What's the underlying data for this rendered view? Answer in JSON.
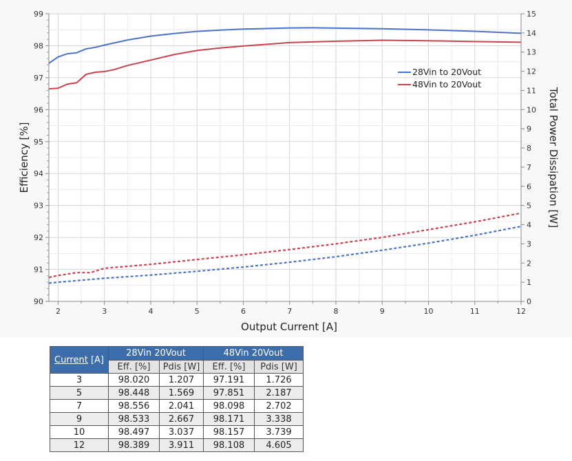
{
  "chart_data": {
    "type": "line",
    "xlabel": "Output Current [A]",
    "ylabel": "Efficiency [%]",
    "y2label": "Total Power Dissipation [W]",
    "xlim": [
      1.8,
      12
    ],
    "ylim": [
      90,
      99
    ],
    "y2lim": [
      0,
      15
    ],
    "xticks": [
      2,
      3,
      4,
      5,
      6,
      7,
      8,
      9,
      10,
      11,
      12
    ],
    "yticks": [
      90,
      91,
      92,
      93,
      94,
      95,
      96,
      97,
      98,
      99
    ],
    "y2ticks": [
      0,
      1,
      2,
      3,
      4,
      5,
      6,
      7,
      8,
      9,
      10,
      11,
      12,
      13,
      14,
      15
    ],
    "grid": true,
    "legend_placement": "right, upper",
    "legend": [
      "28Vin to 20Vout",
      "48Vin to 20Vout"
    ],
    "colors": {
      "28Vin": "#4a72c9",
      "48Vin": "#c8414f"
    },
    "series": [
      {
        "name": "28Vin to 20Vout",
        "axis": "left",
        "style": "solid",
        "color": "#4a72c9",
        "x": [
          1.8,
          2,
          2.2,
          2.4,
          2.6,
          2.8,
          3,
          3.5,
          4,
          4.5,
          5,
          5.5,
          6,
          7,
          7.5,
          8,
          9,
          10,
          11,
          12
        ],
        "y": [
          97.45,
          97.65,
          97.75,
          97.78,
          97.9,
          97.95,
          98.02,
          98.18,
          98.3,
          98.38,
          98.448,
          98.49,
          98.52,
          98.556,
          98.56,
          98.55,
          98.533,
          98.497,
          98.45,
          98.389
        ]
      },
      {
        "name": "48Vin to 20Vout",
        "axis": "left",
        "style": "solid",
        "color": "#c8414f",
        "x": [
          1.8,
          2,
          2.2,
          2.4,
          2.6,
          2.8,
          3,
          3.2,
          3.5,
          4,
          4.5,
          5,
          5.5,
          6,
          7,
          8,
          9,
          10,
          11,
          12
        ],
        "y": [
          96.65,
          96.67,
          96.8,
          96.84,
          97.1,
          97.17,
          97.191,
          97.25,
          97.38,
          97.55,
          97.72,
          97.851,
          97.93,
          97.99,
          98.098,
          98.14,
          98.171,
          98.157,
          98.13,
          98.108
        ]
      },
      {
        "axis": "right",
        "style": "dotted",
        "color": "#4a72c9",
        "x": [
          1.8,
          2,
          2.5,
          3,
          4,
          5,
          6,
          7,
          8,
          9,
          10,
          11,
          12
        ],
        "y": [
          0.95,
          1.0,
          1.1,
          1.207,
          1.37,
          1.569,
          1.79,
          2.041,
          2.33,
          2.667,
          3.037,
          3.45,
          3.911
        ]
      },
      {
        "axis": "right",
        "style": "dotted",
        "color": "#c8414f",
        "x": [
          1.8,
          2,
          2.4,
          2.7,
          3,
          4,
          5,
          6,
          7,
          8,
          9,
          10,
          11,
          12
        ],
        "y": [
          1.25,
          1.35,
          1.5,
          1.5,
          1.726,
          1.93,
          2.187,
          2.43,
          2.702,
          3.0,
          3.338,
          3.739,
          4.15,
          4.605
        ]
      }
    ]
  },
  "table": {
    "current_header_link": "Current",
    "current_header_unit": " [A]",
    "groups": [
      "28Vin 20Vout",
      "48Vin 20Vout"
    ],
    "subheaders": [
      "Eff. [%]",
      "Pdis [W]",
      "Eff. [%]",
      "Pdis [W]"
    ],
    "rows": [
      [
        "3",
        "98.020",
        "1.207",
        "97.191",
        "1.726"
      ],
      [
        "5",
        "98.448",
        "1.569",
        "97.851",
        "2.187"
      ],
      [
        "7",
        "98.556",
        "2.041",
        "98.098",
        "2.702"
      ],
      [
        "9",
        "98.533",
        "2.667",
        "98.171",
        "3.338"
      ],
      [
        "10",
        "98.497",
        "3.037",
        "98.157",
        "3.739"
      ],
      [
        "12",
        "98.389",
        "3.911",
        "98.108",
        "4.605"
      ]
    ]
  }
}
